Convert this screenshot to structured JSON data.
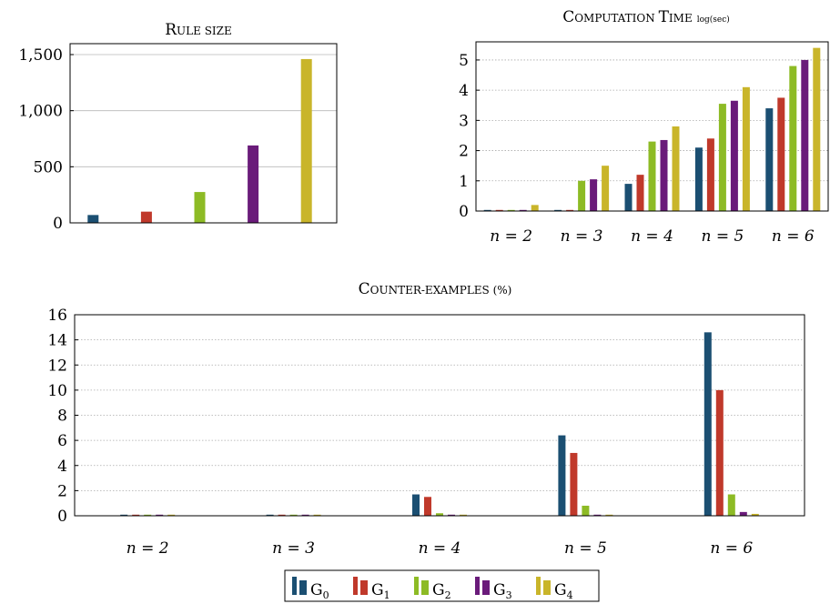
{
  "colors": {
    "G0": "#1b4f72",
    "G1": "#c0392b",
    "G2": "#8dbb25",
    "G3": "#6a1b7a",
    "G4": "#c9b52a",
    "grid": "#b0b0b0",
    "axis": "#000000"
  },
  "chart_data": [
    {
      "id": "rule-size",
      "type": "bar",
      "title_main": "R",
      "title_rest": "ULE SIZE",
      "categories": [
        "G0",
        "G1",
        "G2",
        "G3",
        "G4"
      ],
      "series": [
        {
          "name": "G0",
          "values": [
            70,
            0,
            0,
            0,
            0
          ]
        },
        {
          "name": "G1",
          "values": [
            0,
            100,
            0,
            0,
            0
          ]
        },
        {
          "name": "G2",
          "values": [
            0,
            0,
            275,
            0,
            0
          ]
        },
        {
          "name": "G3",
          "values": [
            0,
            0,
            0,
            690,
            0
          ]
        },
        {
          "name": "G4",
          "values": [
            0,
            0,
            0,
            0,
            1460
          ]
        }
      ],
      "values": [
        70,
        100,
        275,
        690,
        1460
      ],
      "yticks": [
        "0",
        "500",
        "1,000",
        "1,500"
      ],
      "ytick_values": [
        0,
        500,
        1000,
        1500
      ],
      "ylim": [
        0,
        1500
      ],
      "grid": "horizontal solid",
      "xlabel": "",
      "ylabel": ""
    },
    {
      "id": "computation-time",
      "type": "bar",
      "title_parts": [
        "C",
        "OMPUTATION ",
        "T",
        "IME"
      ],
      "title_unit": "log(sec)",
      "categories": [
        "n = 2",
        "n = 3",
        "n = 4",
        "n = 5",
        "n = 6"
      ],
      "series": [
        {
          "name": "G0",
          "values": [
            0,
            0,
            0.9,
            2.1,
            3.4
          ]
        },
        {
          "name": "G1",
          "values": [
            0,
            0,
            1.2,
            2.4,
            3.75
          ]
        },
        {
          "name": "G2",
          "values": [
            0,
            1.0,
            2.3,
            3.55,
            4.8
          ]
        },
        {
          "name": "G3",
          "values": [
            0,
            1.05,
            2.35,
            3.65,
            5.0
          ]
        },
        {
          "name": "G4",
          "values": [
            0.2,
            1.5,
            2.8,
            4.1,
            5.4
          ]
        }
      ],
      "yticks": [
        "0",
        "1",
        "2",
        "3",
        "4",
        "5"
      ],
      "ytick_values": [
        0,
        1,
        2,
        3,
        4,
        5
      ],
      "ylim": [
        0,
        5.6
      ],
      "grid": "horizontal dotted",
      "xlabel": "",
      "ylabel": ""
    },
    {
      "id": "counter-examples",
      "type": "bar",
      "title_main": "C",
      "title_rest": "OUNTER-EXAMPLES (%)",
      "categories": [
        "n = 2",
        "n = 3",
        "n = 4",
        "n = 5",
        "n = 6"
      ],
      "series": [
        {
          "name": "G0",
          "values": [
            0,
            0,
            1.7,
            6.4,
            14.6
          ]
        },
        {
          "name": "G1",
          "values": [
            0,
            0,
            1.5,
            5.0,
            10.0
          ]
        },
        {
          "name": "G2",
          "values": [
            0,
            0,
            0.2,
            0.8,
            1.7
          ]
        },
        {
          "name": "G3",
          "values": [
            0,
            0,
            0.05,
            0.05,
            0.3
          ]
        },
        {
          "name": "G4",
          "values": [
            0,
            0,
            0.05,
            0.05,
            0.15
          ]
        }
      ],
      "yticks": [
        "0",
        "2",
        "4",
        "6",
        "8",
        "10",
        "12",
        "14",
        "16"
      ],
      "ytick_values": [
        0,
        2,
        4,
        6,
        8,
        10,
        12,
        14,
        16
      ],
      "ylim": [
        0,
        16
      ],
      "grid": "horizontal dotted",
      "xlabel": "",
      "ylabel": ""
    }
  ],
  "legend": {
    "placement": "bottom-center",
    "entries": [
      {
        "key": "G0",
        "base": "G",
        "sub": "0"
      },
      {
        "key": "G1",
        "base": "G",
        "sub": "1"
      },
      {
        "key": "G2",
        "base": "G",
        "sub": "2"
      },
      {
        "key": "G3",
        "base": "G",
        "sub": "3"
      },
      {
        "key": "G4",
        "base": "G",
        "sub": "4"
      }
    ]
  }
}
